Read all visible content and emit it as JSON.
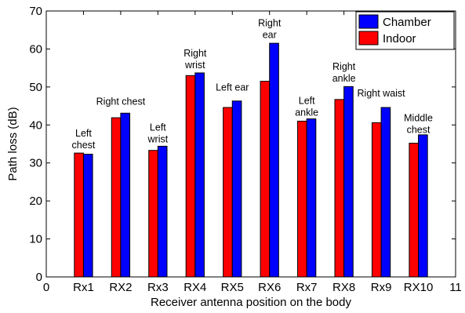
{
  "chart_data": {
    "type": "bar",
    "xlabel": "Receiver antenna position on the body",
    "ylabel": "Path loss (dB)",
    "xlim": [
      0,
      11
    ],
    "ylim": [
      0,
      70
    ],
    "x_ticks": [
      "0",
      "Rx1",
      "RX2",
      "Rx3",
      "RX4",
      "RX5",
      "RX6",
      "Rx7",
      "RX8",
      "Rx9",
      "RX10",
      "11"
    ],
    "y_ticks": [
      0,
      10,
      20,
      30,
      40,
      50,
      60,
      70
    ],
    "grid": false,
    "legend_position": "top-right",
    "series": [
      {
        "name": "Indoor",
        "color": "#ff0000",
        "values": [
          32.6,
          41.9,
          33.3,
          53.0,
          44.6,
          51.5,
          41.0,
          46.7,
          40.6,
          35.2
        ]
      },
      {
        "name": "Chamber",
        "color": "#0000ff",
        "values": [
          32.3,
          43.1,
          34.4,
          53.7,
          46.3,
          61.5,
          41.6,
          50.1,
          44.6,
          37.4
        ]
      }
    ],
    "legend_order": [
      "Chamber",
      "Indoor"
    ],
    "annotations": [
      {
        "lines": [
          "Left",
          "chest"
        ],
        "x": 1,
        "y": 37
      },
      {
        "lines": [
          "Right chest"
        ],
        "x": 2,
        "y": 45.3
      },
      {
        "lines": [
          "Left",
          "wrist"
        ],
        "x": 3,
        "y": 38.5
      },
      {
        "lines": [
          "Right",
          "wrist"
        ],
        "x": 4,
        "y": 58
      },
      {
        "lines": [
          "Left ear"
        ],
        "x": 5,
        "y": 49
      },
      {
        "lines": [
          "Right",
          "ear"
        ],
        "x": 6,
        "y": 66
      },
      {
        "lines": [
          "Left",
          "ankle"
        ],
        "x": 7,
        "y": 45.5
      },
      {
        "lines": [
          "Right",
          "ankle"
        ],
        "x": 8,
        "y": 54.5
      },
      {
        "lines": [
          "Right waist"
        ],
        "x": 9,
        "y": 47.5
      },
      {
        "lines": [
          "Middle",
          "chest"
        ],
        "x": 10,
        "y": 41
      }
    ]
  }
}
